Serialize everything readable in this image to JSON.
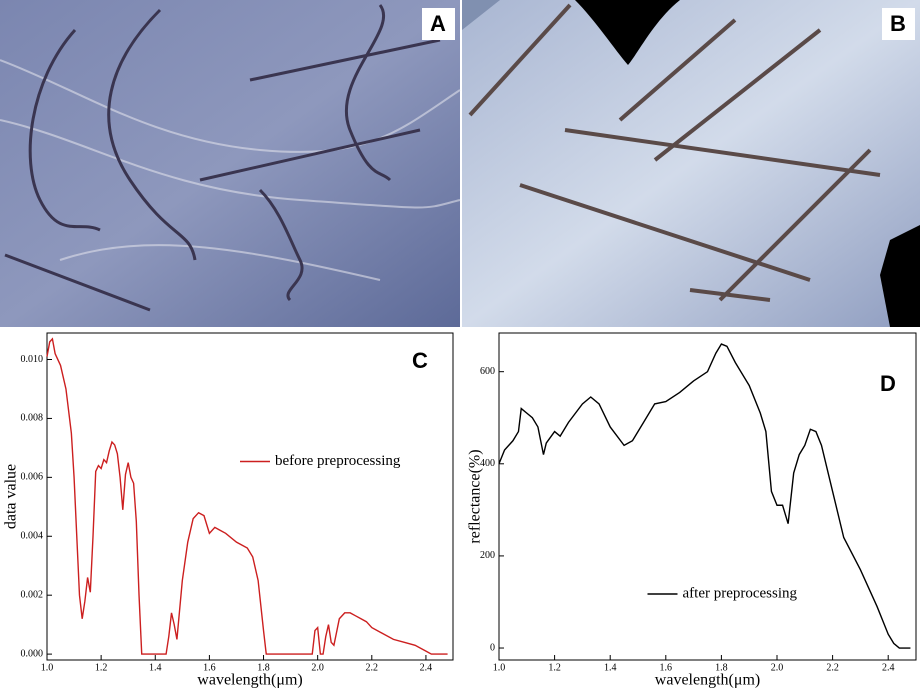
{
  "images": [
    {
      "label": "A"
    },
    {
      "label": "B"
    }
  ],
  "chart_data": [
    {
      "type": "line",
      "panel_label": "C",
      "xlabel": "wavelength(μm)",
      "ylabel": "data value",
      "xlim": [
        1.0,
        2.5
      ],
      "ylim": [
        -0.0002,
        0.0109
      ],
      "xticks": [
        {
          "value": 1,
          "label": "1.0"
        },
        1.2,
        1.4,
        1.6,
        1.8,
        {
          "value": 2,
          "label": "2.0"
        },
        2.2,
        2.4
      ],
      "yticks": [
        {
          "value": 0,
          "label": "0.000"
        },
        {
          "value": 0.002,
          "label": "0.002"
        },
        {
          "value": 0.004,
          "label": "0.004"
        },
        {
          "value": 0.006,
          "label": "0.006"
        },
        {
          "value": 0.008,
          "label": "0.008"
        },
        {
          "value": 0.01,
          "label": "0.010"
        }
      ],
      "legend": "center right",
      "x": [
        1.0,
        1.01,
        1.02,
        1.03,
        1.05,
        1.07,
        1.09,
        1.1,
        1.11,
        1.12,
        1.13,
        1.14,
        1.15,
        1.16,
        1.17,
        1.18,
        1.19,
        1.2,
        1.21,
        1.22,
        1.23,
        1.24,
        1.25,
        1.26,
        1.27,
        1.28,
        1.29,
        1.3,
        1.31,
        1.32,
        1.33,
        1.34,
        1.35,
        1.4,
        1.44,
        1.45,
        1.46,
        1.47,
        1.48,
        1.5,
        1.52,
        1.54,
        1.56,
        1.58,
        1.6,
        1.62,
        1.64,
        1.66,
        1.7,
        1.74,
        1.76,
        1.78,
        1.8,
        1.81,
        1.9,
        1.98,
        1.99,
        2.0,
        2.01,
        2.02,
        2.03,
        2.04,
        2.05,
        2.06,
        2.08,
        2.1,
        2.12,
        2.14,
        2.16,
        2.18,
        2.2,
        2.24,
        2.28,
        2.32,
        2.36,
        2.4,
        2.42,
        2.48
      ],
      "series": [
        {
          "name": "before preprocessing",
          "color": "#cc1f1f",
          "values": [
            0.0101,
            0.0106,
            0.0107,
            0.0102,
            0.0098,
            0.009,
            0.0075,
            0.006,
            0.004,
            0.002,
            0.0012,
            0.0018,
            0.0026,
            0.0021,
            0.004,
            0.0062,
            0.0064,
            0.0063,
            0.0066,
            0.0065,
            0.0069,
            0.0072,
            0.0071,
            0.0068,
            0.006,
            0.0049,
            0.0061,
            0.0065,
            0.006,
            0.0058,
            0.0045,
            0.002,
            0.0,
            0.0,
            0.0,
            0.0006,
            0.0014,
            0.001,
            0.0005,
            0.0025,
            0.0038,
            0.0046,
            0.0048,
            0.0047,
            0.0041,
            0.0043,
            0.0042,
            0.0041,
            0.0038,
            0.0036,
            0.0033,
            0.0025,
            0.0008,
            0.0,
            0.0,
            0.0,
            0.0008,
            0.0009,
            0.0,
            0.0,
            0.0006,
            0.001,
            0.0004,
            0.0003,
            0.0012,
            0.0014,
            0.0014,
            0.0013,
            0.0012,
            0.0011,
            0.0009,
            0.0007,
            0.0005,
            0.0004,
            0.0003,
            0.0001,
            0.0,
            0.0
          ]
        }
      ]
    },
    {
      "type": "line",
      "panel_label": "D",
      "xlabel": "wavelength(μm)",
      "ylabel": "reflectance(%)",
      "xlim": [
        1.0,
        2.5
      ],
      "ylim": [
        -26,
        684
      ],
      "xticks": [
        {
          "value": 1,
          "label": "1.0"
        },
        1.2,
        1.4,
        1.6,
        1.8,
        {
          "value": 2,
          "label": "2.0"
        },
        2.2,
        2.4
      ],
      "yticks": [
        0,
        200,
        400,
        600
      ],
      "legend": "lower center",
      "x": [
        1.0,
        1.02,
        1.05,
        1.07,
        1.08,
        1.1,
        1.12,
        1.14,
        1.16,
        1.17,
        1.2,
        1.22,
        1.25,
        1.3,
        1.33,
        1.36,
        1.4,
        1.45,
        1.48,
        1.52,
        1.56,
        1.6,
        1.65,
        1.7,
        1.75,
        1.78,
        1.8,
        1.82,
        1.85,
        1.9,
        1.94,
        1.96,
        1.98,
        2.0,
        2.02,
        2.04,
        2.06,
        2.08,
        2.1,
        2.12,
        2.14,
        2.16,
        2.2,
        2.24,
        2.3,
        2.36,
        2.4,
        2.42,
        2.44,
        2.48
      ],
      "series": [
        {
          "name": "after preprocessing",
          "color": "#000000",
          "values": [
            400,
            430,
            450,
            470,
            520,
            510,
            500,
            480,
            420,
            445,
            470,
            460,
            490,
            530,
            545,
            530,
            480,
            440,
            450,
            490,
            530,
            535,
            555,
            580,
            600,
            640,
            660,
            655,
            620,
            570,
            510,
            470,
            340,
            310,
            310,
            270,
            380,
            420,
            440,
            475,
            470,
            440,
            340,
            240,
            170,
            90,
            30,
            10,
            0,
            0
          ]
        }
      ]
    }
  ]
}
